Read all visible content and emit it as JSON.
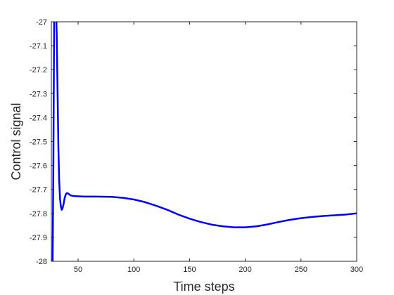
{
  "chart_data": {
    "type": "line",
    "title": "",
    "xlabel": "Time steps",
    "ylabel": "Control signal",
    "xlim": [
      26,
      300
    ],
    "ylim": [
      -28,
      -27
    ],
    "x_ticks": [
      50,
      100,
      150,
      200,
      250,
      300
    ],
    "y_ticks": [
      -28,
      -27.9,
      -27.8,
      -27.7,
      -27.6,
      -27.5,
      -27.4,
      -27.3,
      -27.2,
      -27.1,
      -27
    ],
    "x_tick_labels": [
      "50",
      "100",
      "150",
      "200",
      "250",
      "300"
    ],
    "y_tick_labels": [
      "-28",
      "-27.9",
      "-27.8",
      "-27.7",
      "-27.6",
      "-27.5",
      "-27.4",
      "-27.3",
      "-27.2",
      "-27.1",
      "-27"
    ],
    "grid": false,
    "legend": "none",
    "series": [
      {
        "color": "#0000ff",
        "x": [
          27,
          27.8,
          28.5,
          29.3,
          30,
          30.8,
          31.6,
          32.3,
          33,
          33.8,
          34.5,
          35.3,
          36,
          37,
          38,
          39,
          40,
          41,
          42,
          43,
          45,
          48,
          55,
          65,
          80,
          90,
          100,
          110,
          120,
          130,
          140,
          150,
          160,
          170,
          180,
          190,
          200,
          210,
          220,
          230,
          240,
          250,
          260,
          270,
          280,
          290,
          300
        ],
        "y": [
          -28.1,
          -27.6,
          -27.0,
          -26.9,
          -26.9,
          -27.05,
          -27.3,
          -27.52,
          -27.66,
          -27.74,
          -27.77,
          -27.785,
          -27.78,
          -27.76,
          -27.735,
          -27.72,
          -27.715,
          -27.717,
          -27.72,
          -27.724,
          -27.727,
          -27.728,
          -27.73,
          -27.73,
          -27.731,
          -27.735,
          -27.742,
          -27.753,
          -27.768,
          -27.785,
          -27.805,
          -27.822,
          -27.836,
          -27.847,
          -27.854,
          -27.858,
          -27.858,
          -27.854,
          -27.846,
          -27.836,
          -27.827,
          -27.82,
          -27.815,
          -27.811,
          -27.808,
          -27.805,
          -27.8
        ]
      }
    ]
  }
}
